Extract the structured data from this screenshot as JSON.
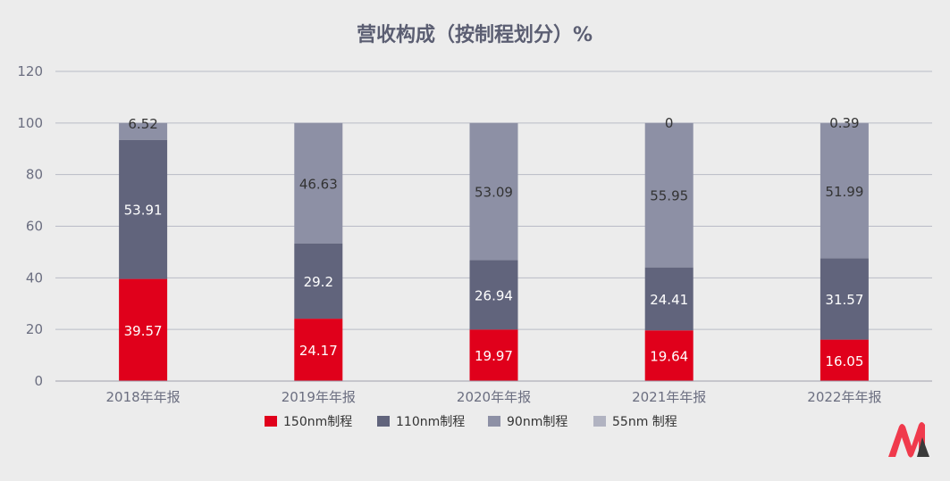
{
  "chart_data": {
    "type": "bar",
    "stacked": true,
    "title": "营收构成（按制程划分）%",
    "categories": [
      "2018年年报",
      "2019年年报",
      "2020年年报",
      "2021年年报",
      "2022年年报"
    ],
    "ylim": [
      0,
      120
    ],
    "yticks": [
      0,
      20,
      40,
      60,
      80,
      100,
      120
    ],
    "grid": true,
    "legend_position": "bottom",
    "series": [
      {
        "name": "150nm制程",
        "values": [
          39.57,
          24.17,
          19.97,
          19.64,
          16.05
        ],
        "color": "#e0001b",
        "label_color": "#ffffff"
      },
      {
        "name": "110nm制程",
        "values": [
          53.91,
          29.2,
          26.94,
          24.41,
          31.57
        ],
        "color": "#61647c",
        "label_color": "#ffffff"
      },
      {
        "name": "90nm制程",
        "values": [
          0,
          46.63,
          53.09,
          55.95,
          51.99
        ],
        "color": "#8d90a5",
        "label_color": "#333333"
      },
      {
        "name": "55nm 制程",
        "values": [
          6.52,
          0,
          0,
          0,
          0.39
        ],
        "color": "#8d90a5",
        "legend_color": "#b1b3c1",
        "label_color": "#333333"
      }
    ],
    "data_labels": [
      {
        "series": 0,
        "category": 0,
        "text": "39.57"
      },
      {
        "series": 0,
        "category": 1,
        "text": "24.17"
      },
      {
        "series": 0,
        "category": 2,
        "text": "19.97"
      },
      {
        "series": 0,
        "category": 3,
        "text": "19.64"
      },
      {
        "series": 0,
        "category": 4,
        "text": "16.05"
      },
      {
        "series": 1,
        "category": 0,
        "text": "53.91"
      },
      {
        "series": 1,
        "category": 1,
        "text": "29.2"
      },
      {
        "series": 1,
        "category": 2,
        "text": "26.94"
      },
      {
        "series": 1,
        "category": 3,
        "text": "24.41"
      },
      {
        "series": 1,
        "category": 4,
        "text": "31.57"
      },
      {
        "series": 2,
        "category": 1,
        "text": "46.63"
      },
      {
        "series": 2,
        "category": 2,
        "text": "53.09"
      },
      {
        "series": 2,
        "category": 3,
        "text": "55.95"
      },
      {
        "series": 2,
        "category": 4,
        "text": "51.99"
      },
      {
        "series": 3,
        "category": 0,
        "text": "6.52"
      },
      {
        "series": 3,
        "category": 3,
        "text": "0"
      },
      {
        "series": 3,
        "category": 4,
        "text": "0.39"
      }
    ]
  },
  "logo": {
    "name": "brand-logo-icon",
    "colors": [
      "#f03a4c",
      "#3a3a3a"
    ]
  }
}
